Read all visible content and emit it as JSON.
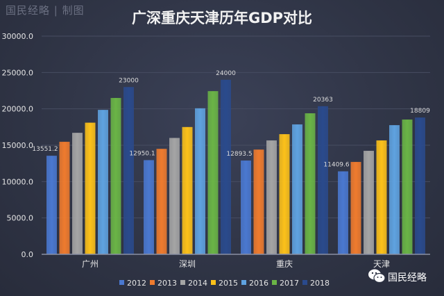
{
  "watermark": "国民经略 | 制图",
  "brand": {
    "label": "国民经略",
    "icon": "wechat-icon"
  },
  "chart_data": {
    "type": "bar",
    "title": "广深重庆天津历年GDP对比",
    "categories": [
      "广州",
      "深圳",
      "重庆",
      "天津"
    ],
    "ylim": [
      0,
      30000
    ],
    "yticks": [
      "0.0",
      "5000.0",
      "10000.0",
      "15000.0",
      "20000.0",
      "25000.0",
      "30000.0"
    ],
    "grid": true,
    "legend_position": "bottom",
    "series": [
      {
        "name": "2012",
        "color": "#4a78d0",
        "values": [
          13551.2,
          12950.1,
          12893.5,
          11409.6
        ]
      },
      {
        "name": "2013",
        "color": "#ef7b2e",
        "values": [
          15470,
          14500,
          14400,
          12700
        ]
      },
      {
        "name": "2014",
        "color": "#a5a5a5",
        "values": [
          16707,
          16002,
          15660,
          14230
        ]
      },
      {
        "name": "2015",
        "color": "#fcc11a",
        "values": [
          18100,
          17502,
          16520,
          15660
        ]
      },
      {
        "name": "2016",
        "color": "#5fa2e0",
        "values": [
          19860,
          20079,
          17860,
          17760
        ]
      },
      {
        "name": "2017",
        "color": "#6ab446",
        "values": [
          21500,
          22438,
          19390,
          18530
        ]
      },
      {
        "name": "2018",
        "color": "#2a4a8c",
        "values": [
          23000,
          24000,
          20363,
          18809
        ]
      }
    ],
    "data_labels": {
      "2012": [
        "13551.2",
        "12950.1",
        "12893.5",
        "11409.6"
      ],
      "2018": [
        "23000",
        "24000",
        "20363",
        "18809"
      ]
    }
  }
}
